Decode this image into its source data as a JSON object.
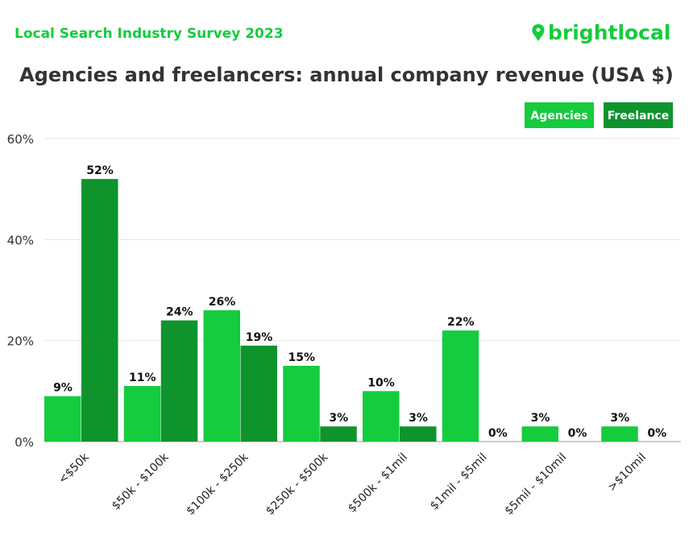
{
  "header": {
    "survey": "Local Search Industry Survey 2023",
    "logo": "brightlocal",
    "logo_icon": "map-pin-heart-icon"
  },
  "colors": {
    "agencies": "#14cc3d",
    "freelance": "#0f932d",
    "title": "#333333",
    "accent": "#14cc3d"
  },
  "chart_data": {
    "type": "bar",
    "title": "Agencies and freelancers: annual company revenue (USA $)",
    "categories": [
      "<$50k",
      "$50k - $100k",
      "$100k - $250k",
      "$250k - $500k",
      "$500k - $1mil",
      "$1mil - $5mil",
      "$5mil - $10mil",
      ">$10mil"
    ],
    "series": [
      {
        "name": "Agencies",
        "values": [
          9,
          11,
          26,
          15,
          10,
          22,
          3,
          3
        ]
      },
      {
        "name": "Freelance",
        "values": [
          52,
          24,
          19,
          3,
          3,
          0,
          0,
          0
        ]
      }
    ],
    "ylim": [
      0,
      60
    ],
    "yticks": [
      "0%",
      "20%",
      "40%",
      "60%"
    ],
    "ytick_values": [
      0,
      20,
      40,
      60
    ],
    "value_suffix": "%",
    "grid": true,
    "legend": "top-right"
  }
}
